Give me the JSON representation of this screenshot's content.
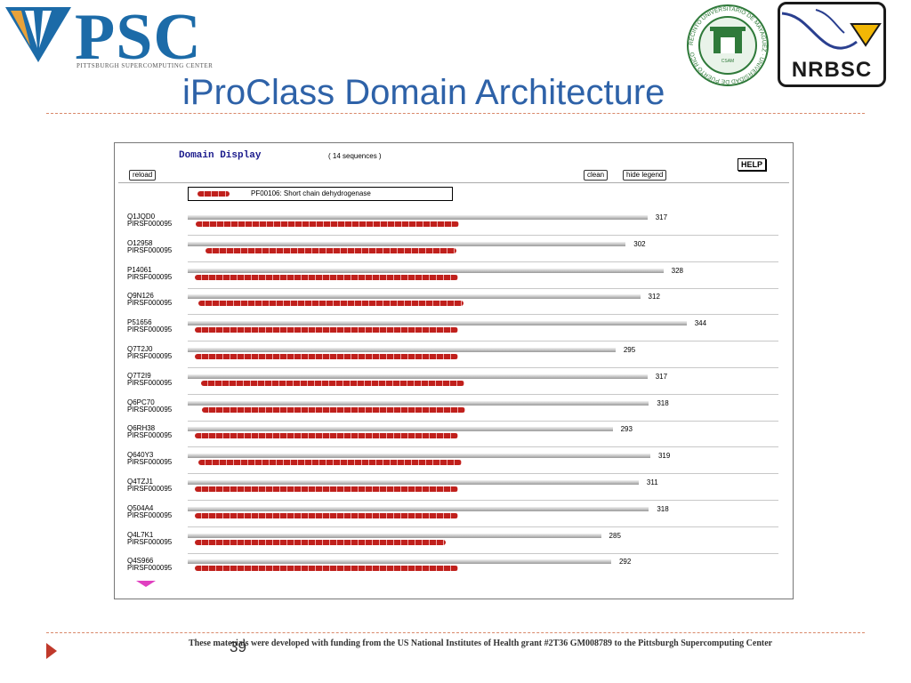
{
  "header": {
    "psc_logo_text": "PSC",
    "psc_logo_subtitle": "PITTSBURGH SUPERCOMPUTING CENTER",
    "nrbsc_logo_text": "NRBSC",
    "seal_text": "RECINTO UNIVERSITARIO DE MAYAGÜEZ · UNIVERSIDAD DE PUERTO RICO",
    "seal_center_text": "CSAM"
  },
  "slide_title": "iProClass Domain Architecture",
  "domain_display": {
    "title": "Domain Display",
    "sequence_count": "( 14 sequences )",
    "buttons": {
      "reload": "reload",
      "clean": "clean",
      "hide_legend": "hide legend",
      "help": "HELP"
    },
    "legend": "PF00106: Short chain dehydrogenase",
    "domain_color": "#c0201c",
    "sequences": [
      {
        "accession": "Q1JQD0",
        "family": "PIRSF000095",
        "length": 317
      },
      {
        "accession": "O12958",
        "family": "PIRSF000095",
        "length": 302
      },
      {
        "accession": "P14061",
        "family": "PIRSF000095",
        "length": 328
      },
      {
        "accession": "Q9N126",
        "family": "PIRSF000095",
        "length": 312
      },
      {
        "accession": "P51656",
        "family": "PIRSF000095",
        "length": 344
      },
      {
        "accession": "Q7T2J0",
        "family": "PIRSF000095",
        "length": 295
      },
      {
        "accession": "Q7T2I9",
        "family": "PIRSF000095",
        "length": 317
      },
      {
        "accession": "Q6PC70",
        "family": "PIRSF000095",
        "length": 318
      },
      {
        "accession": "Q6RH38",
        "family": "PIRSF000095",
        "length": 293
      },
      {
        "accession": "Q640Y3",
        "family": "PIRSF000095",
        "length": 319
      },
      {
        "accession": "Q4TZJ1",
        "family": "PIRSF000095",
        "length": 311
      },
      {
        "accession": "Q504A4",
        "family": "PIRSF000095",
        "length": 318
      },
      {
        "accession": "Q4L7K1",
        "family": "PIRSF000095",
        "length": 285
      },
      {
        "accession": "Q4S966",
        "family": "PIRSF000095",
        "length": 292
      }
    ]
  },
  "footer": {
    "funding_text": "These materials were developed with funding from the US National Institutes of Health grant #2T36 GM008789 to the Pittsburgh Supercomputing Center",
    "page_number": "39"
  }
}
